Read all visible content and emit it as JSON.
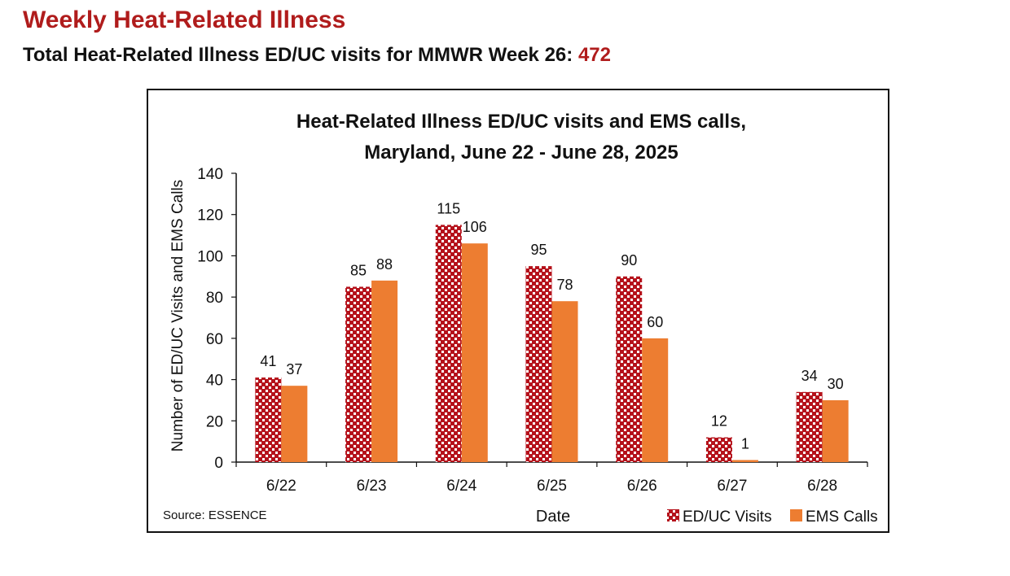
{
  "header": {
    "title": "Weekly Heat-Related Illness",
    "subtitle_prefix": "Total Heat-Related Illness ED/UC visits for MMWR Week 26: ",
    "subtitle_total": "472"
  },
  "colors": {
    "title": "#b01c1c",
    "ed_uc_base": "#b5121b",
    "ed_uc_pattern": "#ffffff",
    "ems": "#ed7d31"
  },
  "chart_data": {
    "type": "bar",
    "title_line1": "Heat-Related Illness ED/UC visits and EMS calls,",
    "title_line2": "Maryland, June 22 - June 28, 2025",
    "xlabel": "Date",
    "ylabel": "Number of ED/UC Visits and EMS Calls",
    "ylim": [
      0,
      140
    ],
    "yticks": [
      "0",
      "20",
      "40",
      "60",
      "80",
      "100",
      "120",
      "140"
    ],
    "categories": [
      "6/22",
      "6/23",
      "6/24",
      "6/25",
      "6/26",
      "6/27",
      "6/28"
    ],
    "series": [
      {
        "name": "ED/UC Visits",
        "values": [
          41,
          85,
          115,
          95,
          90,
          12,
          34
        ]
      },
      {
        "name": "EMS Calls",
        "values": [
          37,
          88,
          106,
          78,
          60,
          1,
          30
        ]
      }
    ],
    "legend_position": "bottom-right",
    "source": "Source: ESSENCE",
    "grid": false
  }
}
